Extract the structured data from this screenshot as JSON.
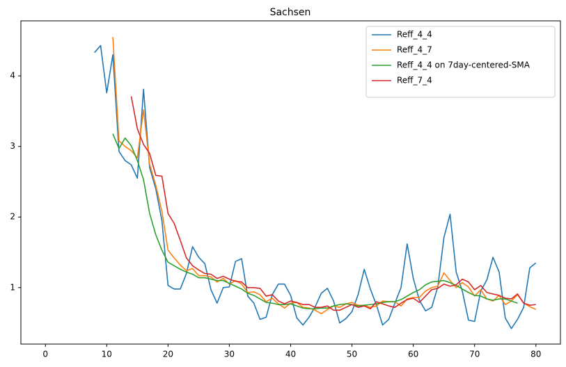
{
  "chart_data": {
    "type": "line",
    "title": "Sachsen",
    "x": [
      0,
      1,
      2,
      3,
      4,
      5,
      6,
      7,
      8,
      9,
      10,
      11,
      12,
      13,
      14,
      15,
      16,
      17,
      18,
      19,
      20,
      21,
      22,
      23,
      24,
      25,
      26,
      27,
      28,
      29,
      30,
      31,
      32,
      33,
      34,
      35,
      36,
      37,
      38,
      39,
      40,
      41,
      42,
      43,
      44,
      45,
      46,
      47,
      48,
      49,
      50,
      51,
      52,
      53,
      54,
      55,
      56,
      57,
      58,
      59,
      60,
      61,
      62,
      63,
      64,
      65,
      66,
      67,
      68,
      69,
      70,
      71,
      72,
      73,
      74,
      75,
      76,
      77,
      78,
      79,
      80
    ],
    "series": [
      {
        "name": "Reff_4_4",
        "color": "#1f77b4",
        "values": [
          null,
          null,
          null,
          null,
          null,
          null,
          null,
          null,
          4.33,
          4.43,
          3.76,
          4.3,
          2.93,
          2.8,
          2.74,
          2.55,
          3.81,
          2.7,
          2.4,
          1.95,
          1.03,
          0.98,
          0.98,
          1.2,
          1.58,
          1.43,
          1.34,
          0.97,
          0.78,
          1.0,
          1.01,
          1.37,
          1.41,
          0.88,
          0.78,
          0.55,
          0.58,
          0.9,
          1.05,
          1.05,
          0.89,
          0.57,
          0.47,
          0.58,
          0.73,
          0.92,
          0.99,
          0.81,
          0.5,
          0.56,
          0.66,
          0.9,
          1.26,
          0.98,
          0.75,
          0.47,
          0.55,
          0.78,
          1.0,
          1.62,
          1.13,
          0.82,
          0.67,
          0.72,
          1.01,
          1.71,
          2.04,
          1.22,
          0.95,
          0.54,
          0.52,
          0.95,
          1.11,
          1.43,
          1.22,
          0.57,
          0.42,
          0.55,
          0.72,
          1.28,
          1.35
        ]
      },
      {
        "name": "Reff_4_7",
        "color": "#ff7f0e",
        "values": [
          null,
          null,
          null,
          null,
          null,
          null,
          null,
          null,
          null,
          null,
          null,
          4.55,
          3.08,
          3.0,
          2.94,
          2.84,
          3.52,
          2.75,
          2.45,
          2.08,
          1.53,
          1.42,
          1.32,
          1.24,
          1.27,
          1.17,
          1.17,
          1.15,
          1.08,
          1.13,
          1.05,
          1.1,
          1.05,
          0.93,
          0.94,
          0.9,
          0.8,
          0.85,
          0.77,
          0.71,
          0.78,
          0.79,
          0.72,
          0.71,
          0.68,
          0.63,
          0.69,
          0.74,
          0.72,
          0.77,
          0.79,
          0.75,
          0.75,
          0.72,
          0.74,
          0.81,
          0.8,
          0.8,
          0.74,
          0.84,
          0.86,
          0.86,
          0.95,
          1.0,
          1.02,
          1.21,
          1.1,
          1.0,
          1.07,
          1.01,
          0.88,
          0.97,
          0.84,
          0.81,
          0.89,
          0.76,
          0.81,
          0.9,
          0.78,
          0.73,
          0.69
        ]
      },
      {
        "name": "Reff_4_4 on 7day-centered-SMA",
        "color": "#2ca02c",
        "values": [
          null,
          null,
          null,
          null,
          null,
          null,
          null,
          null,
          null,
          null,
          null,
          3.18,
          2.97,
          3.12,
          3.01,
          2.8,
          2.53,
          2.05,
          1.75,
          1.53,
          1.36,
          1.31,
          1.26,
          1.22,
          1.19,
          1.14,
          1.14,
          1.12,
          1.1,
          1.1,
          1.06,
          1.02,
          0.98,
          0.92,
          0.89,
          0.84,
          0.79,
          0.78,
          0.76,
          0.76,
          0.77,
          0.74,
          0.71,
          0.7,
          0.7,
          0.71,
          0.71,
          0.74,
          0.76,
          0.77,
          0.76,
          0.74,
          0.75,
          0.76,
          0.77,
          0.79,
          0.8,
          0.8,
          0.83,
          0.88,
          0.93,
          0.97,
          1.04,
          1.08,
          1.09,
          1.1,
          1.07,
          1.03,
          0.98,
          0.93,
          0.89,
          0.88,
          0.84,
          0.82,
          0.84,
          0.84,
          0.81,
          0.78,
          null,
          null,
          null
        ]
      },
      {
        "name": "Reff_7_4",
        "color": "#d62728",
        "values": [
          null,
          null,
          null,
          null,
          null,
          null,
          null,
          null,
          null,
          null,
          null,
          null,
          null,
          null,
          3.71,
          3.25,
          3.03,
          2.9,
          2.59,
          2.58,
          2.05,
          1.91,
          1.67,
          1.42,
          1.31,
          1.25,
          1.2,
          1.19,
          1.13,
          1.16,
          1.12,
          1.09,
          1.08,
          1.0,
          1.0,
          0.99,
          0.88,
          0.9,
          0.81,
          0.77,
          0.81,
          0.79,
          0.76,
          0.76,
          0.72,
          0.72,
          0.74,
          0.68,
          0.68,
          0.72,
          0.76,
          0.72,
          0.74,
          0.7,
          0.8,
          0.77,
          0.74,
          0.72,
          0.78,
          0.83,
          0.85,
          0.79,
          0.88,
          0.97,
          0.99,
          1.05,
          1.02,
          1.04,
          1.12,
          1.08,
          0.97,
          1.03,
          0.93,
          0.91,
          0.89,
          0.85,
          0.84,
          0.91,
          0.78,
          0.75,
          0.76
        ]
      }
    ],
    "xlim": [
      -4,
      84
    ],
    "ylim": [
      0.2,
      4.78
    ],
    "xticks": [
      0,
      10,
      20,
      30,
      40,
      50,
      60,
      70,
      80
    ],
    "yticks": [
      1,
      2,
      3,
      4
    ],
    "grid": false,
    "legend": "upper right"
  }
}
